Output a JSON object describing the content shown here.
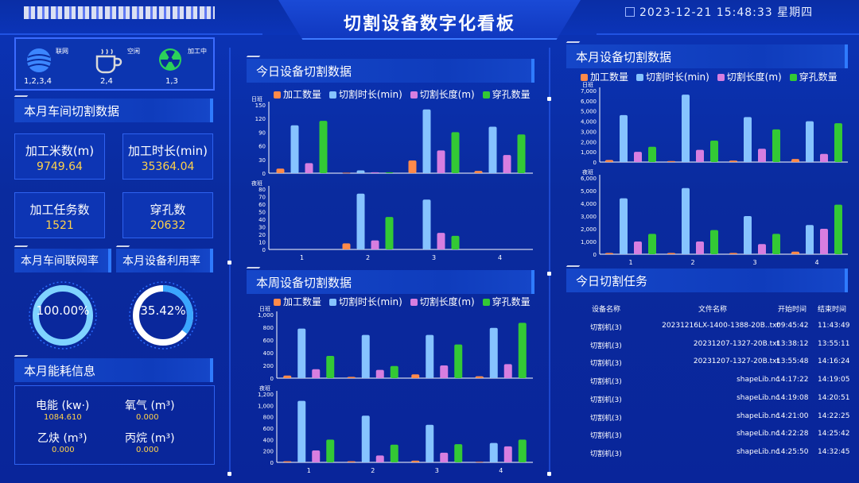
{
  "header": {
    "title": "切割设备数字化看板",
    "datetime": "2023-12-21  15:48:33  星期四"
  },
  "status": [
    {
      "label": "联网",
      "value": "1,2,3,4",
      "icon": "globe-icon"
    },
    {
      "label": "空闲",
      "value": "2,4",
      "icon": "coffee-cup-icon"
    },
    {
      "label": "加工中",
      "value": "1,3",
      "icon": "radiation-icon"
    }
  ],
  "workshop": {
    "title": "本月车间切割数据",
    "stats": [
      {
        "label": "加工米数(m)",
        "value": "9749.64"
      },
      {
        "label": "加工时长(min)",
        "value": "35364.04"
      },
      {
        "label": "加工任务数",
        "value": "1521"
      },
      {
        "label": "穿孔数",
        "value": "20632"
      }
    ]
  },
  "rates": {
    "network_title": "本月车间联网率",
    "network_value": "100.00%",
    "network_fraction": 1.0,
    "utilization_title": "本月设备利用率",
    "utilization_value": "35.42%",
    "utilization_fraction": 0.3542
  },
  "energy": {
    "title": "本月能耗信息",
    "items": [
      {
        "label": "电能 (kw·)",
        "value": "1084.610"
      },
      {
        "label": "氧气 (m³)",
        "value": "0.000"
      },
      {
        "label": "乙炔 (m³)",
        "value": "0.000"
      },
      {
        "label": "丙烷 (m³)",
        "value": "0.000"
      }
    ]
  },
  "colors": {
    "series": [
      "#ff8a4a",
      "#86c3ff",
      "#d77ee0",
      "#33c935"
    ]
  },
  "panels": {
    "today": "今日设备切割数据",
    "week": "本周设备切割数据",
    "month": "本月设备切割数据",
    "tasks": "今日切割任务"
  },
  "legend": [
    "加工数量",
    "切割时长(min)",
    "切割长度(m)",
    "穿孔数量"
  ],
  "chart_data": [
    {
      "id": "today-day",
      "type": "bar",
      "title": "今日设备切割数据",
      "ylabel": "日班",
      "categories": [
        "1",
        "2",
        "3",
        "4"
      ],
      "ylim": [
        0,
        150
      ],
      "yticks": [
        0,
        30,
        60,
        90,
        120,
        150
      ],
      "series": [
        {
          "name": "加工数量",
          "values": [
            10,
            1,
            28,
            5
          ]
        },
        {
          "name": "切割时长(min)",
          "values": [
            105,
            6,
            140,
            102
          ]
        },
        {
          "name": "切割长度(m)",
          "values": [
            22,
            2,
            50,
            40
          ]
        },
        {
          "name": "穿孔数量",
          "values": [
            115,
            2,
            90,
            85
          ]
        }
      ]
    },
    {
      "id": "today-night",
      "type": "bar",
      "ylabel": "夜班",
      "categories": [
        "1",
        "2",
        "3",
        "4"
      ],
      "ylim": [
        0,
        80
      ],
      "yticks": [
        0,
        10,
        20,
        30,
        40,
        50,
        60,
        70,
        80
      ],
      "series": [
        {
          "name": "加工数量",
          "values": [
            0,
            8,
            0,
            0
          ]
        },
        {
          "name": "切割时长(min)",
          "values": [
            0,
            74,
            66,
            0
          ]
        },
        {
          "name": "切割长度(m)",
          "values": [
            0,
            12,
            22,
            0
          ]
        },
        {
          "name": "穿孔数量",
          "values": [
            0,
            43,
            18,
            0
          ]
        }
      ]
    },
    {
      "id": "week-day",
      "type": "bar",
      "title": "本周设备切割数据",
      "ylabel": "日班",
      "categories": [
        "1",
        "2",
        "3",
        "4"
      ],
      "ylim": [
        0,
        1000
      ],
      "yticks": [
        0,
        200,
        400,
        600,
        800,
        1000
      ],
      "tickfmt": "comma",
      "series": [
        {
          "name": "加工数量",
          "values": [
            40,
            20,
            60,
            30
          ]
        },
        {
          "name": "切割时长(min)",
          "values": [
            780,
            680,
            680,
            790
          ]
        },
        {
          "name": "切割长度(m)",
          "values": [
            140,
            130,
            200,
            220
          ]
        },
        {
          "name": "穿孔数量",
          "values": [
            350,
            190,
            530,
            870
          ]
        }
      ]
    },
    {
      "id": "week-night",
      "type": "bar",
      "ylabel": "夜班",
      "categories": [
        "1",
        "2",
        "3",
        "4"
      ],
      "ylim": [
        0,
        1200
      ],
      "yticks": [
        0,
        200,
        400,
        600,
        800,
        1000,
        1200
      ],
      "tickfmt": "comma",
      "series": [
        {
          "name": "加工数量",
          "values": [
            20,
            20,
            30,
            10
          ]
        },
        {
          "name": "切割时长(min)",
          "values": [
            1080,
            820,
            660,
            340
          ]
        },
        {
          "name": "切割长度(m)",
          "values": [
            210,
            120,
            170,
            280
          ]
        },
        {
          "name": "穿孔数量",
          "values": [
            400,
            310,
            320,
            400
          ]
        }
      ]
    },
    {
      "id": "month-day",
      "type": "bar",
      "title": "本月设备切割数据",
      "ylabel": "日班",
      "categories": [
        "1",
        "2",
        "3",
        "4"
      ],
      "ylim": [
        0,
        7000
      ],
      "yticks": [
        0,
        1000,
        2000,
        3000,
        4000,
        5000,
        6000,
        7000
      ],
      "tickfmt": "comma",
      "series": [
        {
          "name": "加工数量",
          "values": [
            200,
            100,
            150,
            300
          ]
        },
        {
          "name": "切割时长(min)",
          "values": [
            4600,
            6600,
            4400,
            4000
          ]
        },
        {
          "name": "切割长度(m)",
          "values": [
            1000,
            1200,
            1300,
            800
          ]
        },
        {
          "name": "穿孔数量",
          "values": [
            1500,
            2100,
            3200,
            3800
          ]
        }
      ]
    },
    {
      "id": "month-night",
      "type": "bar",
      "ylabel": "夜班",
      "categories": [
        "1",
        "2",
        "3",
        "4"
      ],
      "ylim": [
        0,
        6000
      ],
      "yticks": [
        0,
        1000,
        2000,
        3000,
        4000,
        5000,
        6000
      ],
      "tickfmt": "comma",
      "series": [
        {
          "name": "加工数量",
          "values": [
            100,
            100,
            100,
            200
          ]
        },
        {
          "name": "切割时长(min)",
          "values": [
            4400,
            5200,
            3000,
            2300
          ]
        },
        {
          "name": "切割长度(m)",
          "values": [
            1000,
            1000,
            800,
            2000
          ]
        },
        {
          "name": "穿孔数量",
          "values": [
            1600,
            1900,
            1600,
            3900
          ]
        }
      ]
    }
  ],
  "tasks": {
    "headers": [
      "设备名称",
      "文件名称",
      "开始时间",
      "结束时间"
    ],
    "rows": [
      [
        "切割机(3)",
        "20231216LX-1400-1388-20B..txt",
        "09:45:42",
        "11:43:49"
      ],
      [
        "切割机(3)",
        "20231207-1327-20B.txt",
        "13:38:12",
        "13:55:11"
      ],
      [
        "切割机(3)",
        "20231207-1327-20B.txt",
        "13:55:48",
        "14:16:24"
      ],
      [
        "切割机(3)",
        "shapeLib.nc",
        "14:17:22",
        "14:19:05"
      ],
      [
        "切割机(3)",
        "shapeLib.nc",
        "14:19:08",
        "14:20:51"
      ],
      [
        "切割机(3)",
        "shapeLib.nc",
        "14:21:00",
        "14:22:25"
      ],
      [
        "切割机(3)",
        "shapeLib.nc",
        "14:22:28",
        "14:25:42"
      ],
      [
        "切割机(3)",
        "shapeLib.nc",
        "14:25:50",
        "14:32:45"
      ]
    ]
  }
}
